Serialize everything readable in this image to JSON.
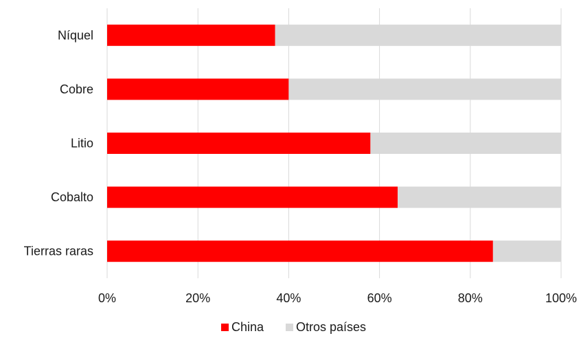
{
  "chart_data": {
    "type": "bar",
    "orientation": "horizontal",
    "stacked": true,
    "categories": [
      "Níquel",
      "Cobre",
      "Litio",
      "Cobalto",
      "Tierras raras"
    ],
    "series": [
      {
        "name": "China",
        "color": "#ff0000",
        "values": [
          37,
          40,
          58,
          64,
          85
        ]
      },
      {
        "name": "Otros países",
        "color": "#d9d9d9",
        "values": [
          63,
          60,
          42,
          36,
          15
        ]
      }
    ],
    "xlim": [
      0,
      100
    ],
    "x_ticks": [
      0,
      20,
      40,
      60,
      80,
      100
    ],
    "x_tick_labels": [
      "0%",
      "20%",
      "40%",
      "60%",
      "80%",
      "100%"
    ],
    "gridlines": true,
    "legend_position": "bottom"
  }
}
